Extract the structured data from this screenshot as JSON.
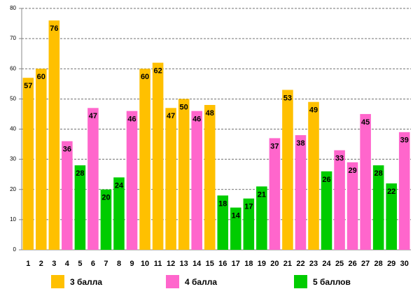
{
  "chart_data": {
    "type": "bar",
    "categories": [
      "1",
      "2",
      "3",
      "4",
      "5",
      "6",
      "7",
      "8",
      "9",
      "10",
      "11",
      "12",
      "13",
      "14",
      "15",
      "16",
      "17",
      "18",
      "19",
      "20",
      "21",
      "22",
      "23",
      "24",
      "25",
      "26",
      "27",
      "28",
      "29",
      "30"
    ],
    "series": [
      {
        "name": "3 балла",
        "color": "#ffc000",
        "values": [
          57,
          60,
          76,
          null,
          null,
          null,
          null,
          null,
          null,
          60,
          62,
          47,
          50,
          null,
          48,
          null,
          null,
          null,
          null,
          null,
          53,
          null,
          49,
          null,
          null,
          null,
          null,
          null,
          null,
          null
        ]
      },
      {
        "name": "4 балла",
        "color": "#ff66cc",
        "values": [
          null,
          null,
          null,
          36,
          null,
          47,
          null,
          null,
          46,
          null,
          null,
          null,
          null,
          46,
          null,
          null,
          null,
          null,
          null,
          37,
          null,
          38,
          null,
          null,
          33,
          29,
          45,
          null,
          null,
          39
        ]
      },
      {
        "name": "5 баллов",
        "color": "#00cc00",
        "values": [
          null,
          null,
          null,
          null,
          28,
          null,
          20,
          24,
          null,
          null,
          null,
          null,
          null,
          null,
          null,
          18,
          14,
          17,
          21,
          null,
          null,
          null,
          null,
          26,
          null,
          null,
          null,
          28,
          22,
          null
        ]
      }
    ],
    "ylim": [
      0,
      80
    ],
    "yticks": [
      0,
      10,
      20,
      30,
      40,
      50,
      60,
      70,
      80
    ],
    "grid": true
  }
}
